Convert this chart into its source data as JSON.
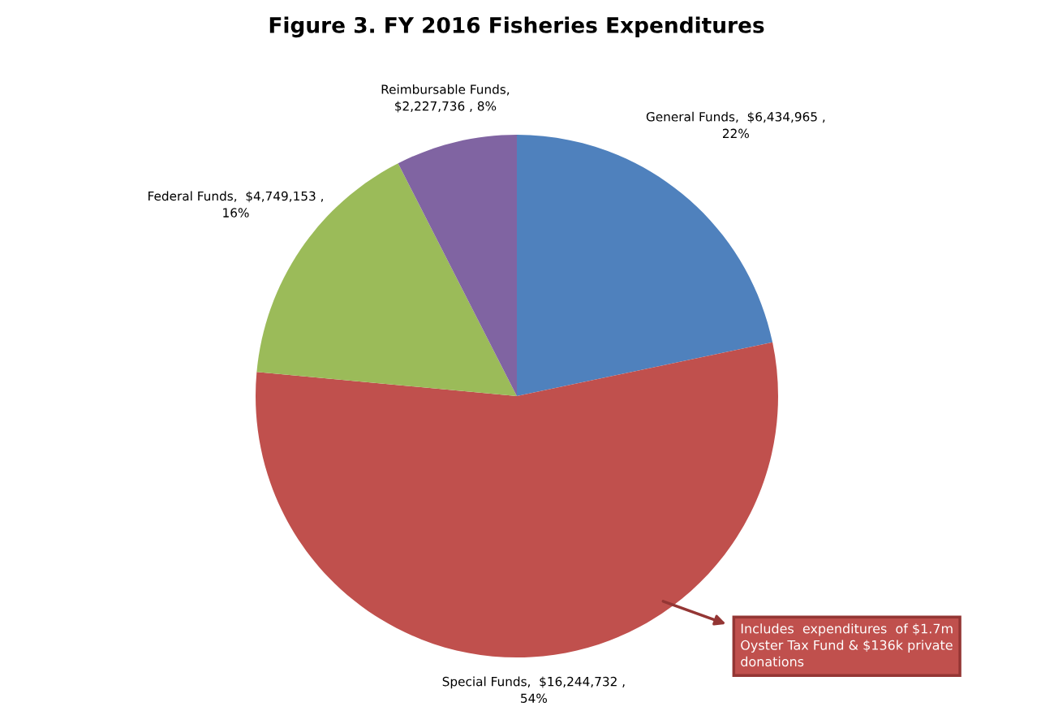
{
  "chart_data": {
    "type": "pie",
    "title": "Figure 3. FY 2016 Fisheries Expenditures",
    "categories": [
      "General Funds",
      "Special Funds",
      "Federal Funds",
      "Reimbursable Funds"
    ],
    "values": [
      6434965,
      16244732,
      4749153,
      2227736
    ],
    "colors": [
      "#4f81bd",
      "#c0504d",
      "#9bbb59",
      "#8064a2"
    ],
    "value_labels": [
      ",  $6,434,965 ,\n22%",
      ",  $16,244,732 ,\n54%",
      ",  $4,749,153 ,\n16%",
      ",\n$2,227,736 , 8%"
    ],
    "annotations": [
      {
        "text": "Includes  expenditures  of $1.7m\nOyster Tax Fund & $136k private\ndonations",
        "x": "Special Funds"
      }
    ],
    "legend": false
  }
}
